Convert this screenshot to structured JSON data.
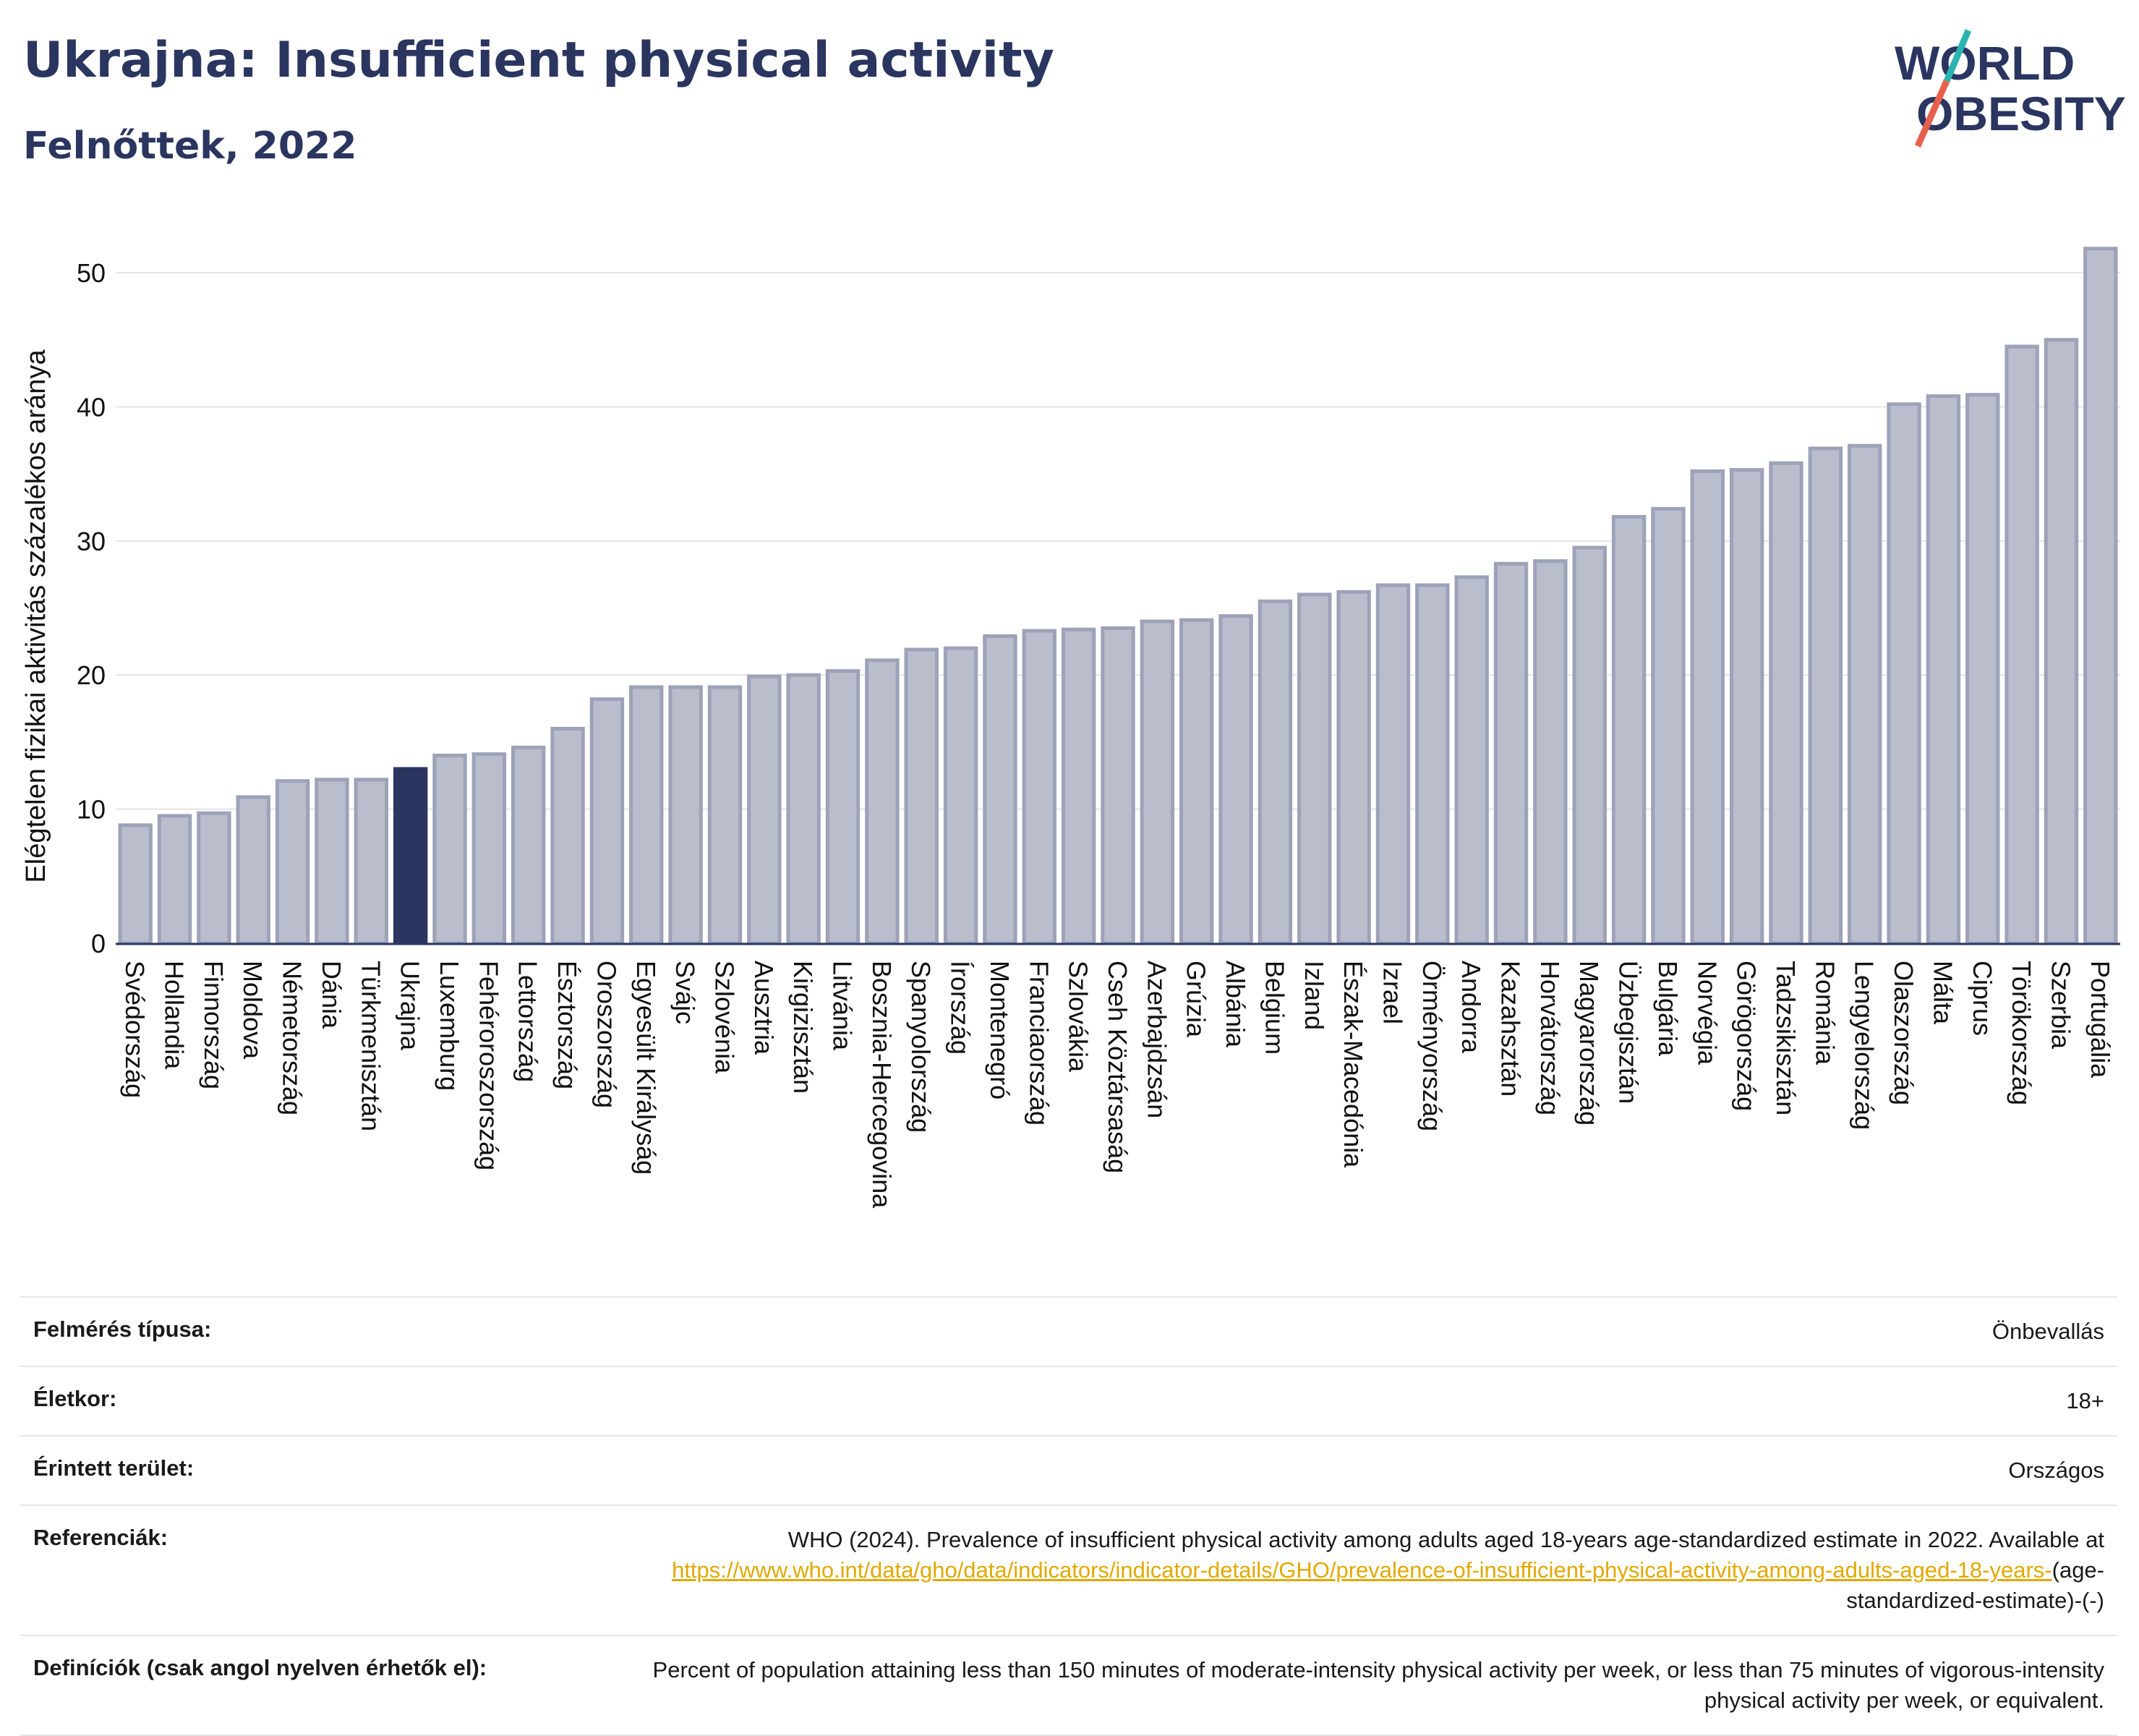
{
  "header": {
    "title": "Ukrajna: Insufficient physical activity",
    "subtitle": "Felnőttek, 2022"
  },
  "logo": {
    "line1": "WORLD",
    "line2": "OBESITY",
    "color": "#2a3560",
    "accent_teal": "#2bb3b1",
    "accent_red": "#e8604c"
  },
  "chart_data": {
    "type": "bar",
    "ylabel": "Elégtelen fizikai aktivitás százalékos aránya",
    "xlabel": "",
    "ylim": [
      0,
      52
    ],
    "yticks": [
      0,
      10,
      20,
      30,
      40,
      50
    ],
    "grid": true,
    "highlight": "Ukrajna",
    "bar_color": "#b9bdcc",
    "bar_edge_color": "#9da2b8",
    "highlight_color": "#2a3560",
    "categories": [
      "Svédország",
      "Hollandia",
      "Finnország",
      "Moldova",
      "Németország",
      "Dánia",
      "Türkmenisztán",
      "Ukrajna",
      "Luxemburg",
      "Fehéroroszország",
      "Lettország",
      "Észtország",
      "Oroszország",
      "Egyesült Királyság",
      "Svájc",
      "Szlovénia",
      "Ausztria",
      "Kirgizisztán",
      "Litvánia",
      "Bosznia-Hercegovina",
      "Spanyolország",
      "Írország",
      "Montenegró",
      "Franciaország",
      "Szlovákia",
      "Cseh Köztársaság",
      "Azerbajdzsán",
      "Grúzia",
      "Albánia",
      "Belgium",
      "Izland",
      "Észak-Macedónia",
      "Izrael",
      "Örményország",
      "Andorra",
      "Kazahsztán",
      "Horvátország",
      "Magyarország",
      "Üzbegisztán",
      "Bulgária",
      "Norvégia",
      "Görögország",
      "Tadzsikisztán",
      "Románia",
      "Lengyelország",
      "Olaszország",
      "Málta",
      "Ciprus",
      "Törökország",
      "Szerbia",
      "Portugália"
    ],
    "values": [
      8.8,
      9.5,
      9.7,
      10.9,
      12.1,
      12.2,
      12.2,
      13.0,
      14.0,
      14.1,
      14.6,
      16.0,
      18.2,
      19.1,
      19.1,
      19.1,
      19.9,
      20.0,
      20.3,
      21.1,
      21.9,
      22.0,
      22.9,
      23.3,
      23.4,
      23.5,
      24.0,
      24.1,
      24.4,
      25.5,
      26.0,
      26.2,
      26.7,
      26.7,
      27.3,
      28.3,
      28.5,
      29.5,
      31.8,
      32.4,
      35.2,
      35.3,
      35.8,
      36.9,
      37.1,
      40.2,
      40.8,
      40.9,
      44.5,
      45.0,
      51.8
    ]
  },
  "info": {
    "survey_label": "Felmérés típusa:",
    "survey_value": "Önbevallás",
    "age_label": "Életkor:",
    "age_value": "18+",
    "area_label": "Érintett terület:",
    "area_value": "Országos",
    "ref_label": "Referenciák:",
    "ref_text": "WHO (2024). Prevalence of insufficient physical activity among adults aged 18-years age-standardized estimate in 2022. Available at",
    "ref_link": "https://www.who.int/data/gho/data/indicators/indicator-details/GHO/prevalence-of-insufficient-physical-activity-among-adults-aged-18-years-",
    "ref_tail": "(age-standardized-estimate)-(-)",
    "def_label": "Definíciók (csak angol nyelven érhetők el):",
    "def_text": "Percent of population attaining less than 150 minutes of moderate-intensity physical activity per week, or less than 75 minutes of vigorous-intensity physical activity per week, or equivalent."
  }
}
